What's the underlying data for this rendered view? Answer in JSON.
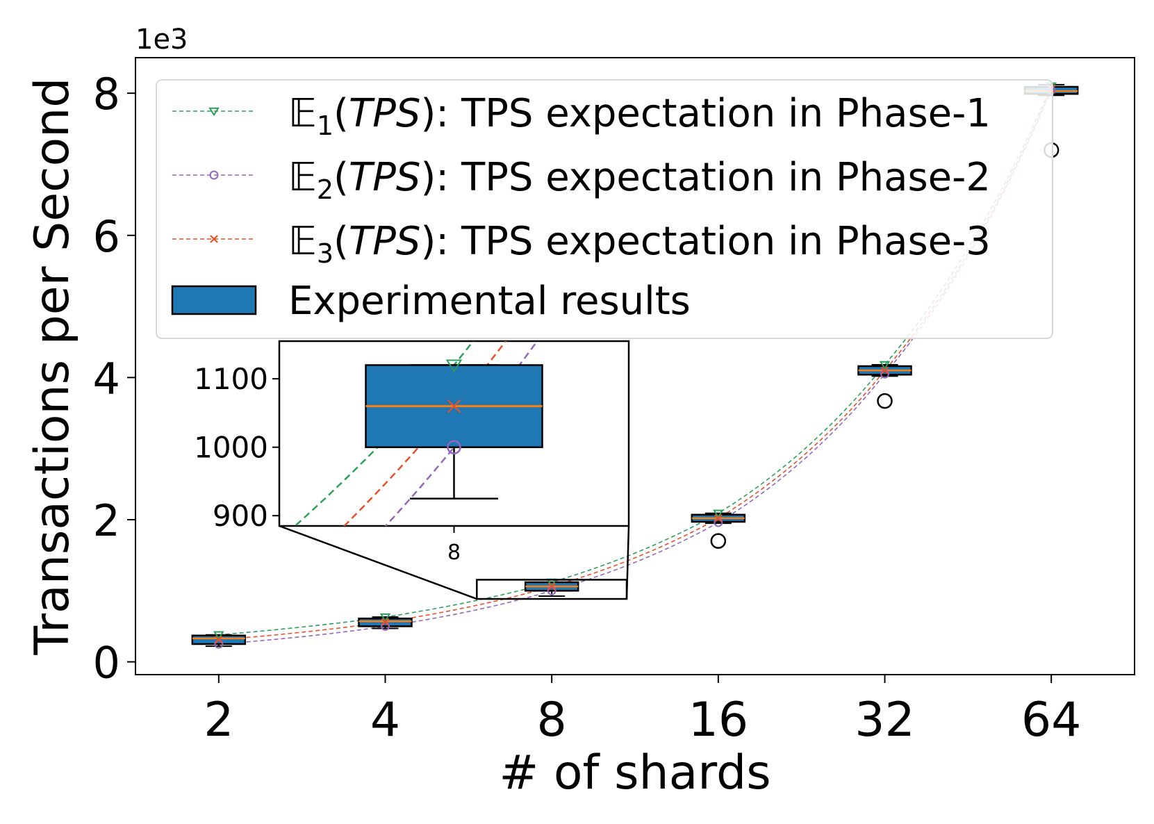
{
  "chart_data": [
    {
      "type": "box",
      "xlabel": "# of shards",
      "ylabel": "Transactions per Second",
      "scale_note": "1e3",
      "x_scale": "log2",
      "categories": [
        "2",
        "4",
        "8",
        "16",
        "32",
        "64"
      ],
      "x": [
        2,
        4,
        8,
        16,
        32,
        64
      ],
      "ylim": [
        -0.18,
        8.5
      ],
      "yticks": [
        0,
        2,
        4,
        6,
        8
      ],
      "y_tick_labels": [
        "0",
        "2",
        "4",
        "6",
        "8"
      ],
      "grid": false,
      "legend_placement": "upper-left",
      "boxes": [
        {
          "x": 2,
          "whisker_low": 0.22,
          "q1": 0.25,
          "median": 0.33,
          "q3": 0.37,
          "whisker_high": 0.38,
          "outliers": []
        },
        {
          "x": 4,
          "whisker_low": 0.47,
          "q1": 0.5,
          "median": 0.57,
          "q3": 0.61,
          "whisker_high": 0.63,
          "outliers": []
        },
        {
          "x": 8,
          "whisker_low": 0.925,
          "q1": 1.0,
          "median": 1.06,
          "q3": 1.12,
          "whisker_high": 1.12,
          "outliers": []
        },
        {
          "x": 16,
          "whisker_low": 1.95,
          "q1": 1.97,
          "median": 2.02,
          "q3": 2.07,
          "whisker_high": 2.09,
          "outliers": [
            1.7
          ]
        },
        {
          "x": 32,
          "whisker_low": 4.02,
          "q1": 4.04,
          "median": 4.1,
          "q3": 4.16,
          "whisker_high": 4.18,
          "outliers": [
            3.67
          ]
        },
        {
          "x": 64,
          "whisker_low": 7.97,
          "q1": 7.99,
          "median": 8.03,
          "q3": 8.09,
          "whisker_high": 8.12,
          "outliers": [
            7.2
          ]
        }
      ],
      "series": [
        {
          "name": "E1(TPS): TPS expectation in Phase-1",
          "values": [
            0.38,
            0.63,
            1.12,
            2.09,
            4.18,
            8.1
          ]
        },
        {
          "name": "E2(TPS): TPS expectation in Phase-2",
          "values": [
            0.25,
            0.5,
            1.0,
            1.96,
            4.05,
            8.04
          ]
        },
        {
          "name": "E3(TPS): TPS expectation in Phase-3",
          "values": [
            0.31,
            0.56,
            1.06,
            2.02,
            4.1,
            8.06
          ]
        }
      ],
      "colors": {
        "e1": "#2ca05a",
        "e2": "#9467bd",
        "e3": "#e8502b",
        "box_fill": "#1f77b4",
        "median": "#ff7f0e"
      },
      "legend": [
        {
          "math": "𝔼",
          "sub": "1",
          "paren_open": "(",
          "italic": "TPS",
          "paren_close": ")",
          "text": ": TPS expectation in Phase-1"
        },
        {
          "math": "𝔼",
          "sub": "2",
          "paren_open": "(",
          "italic": "TPS",
          "paren_close": ")",
          "text": ": TPS expectation in Phase-2"
        },
        {
          "math": "𝔼",
          "sub": "3",
          "paren_open": "(",
          "italic": "TPS",
          "paren_close": ")",
          "text": ": TPS expectation in Phase-3"
        },
        {
          "text": "Experimental results"
        }
      ]
    },
    {
      "type": "box",
      "role": "inset-zoom",
      "categories": [
        "8"
      ],
      "ylim": [
        885,
        1155
      ],
      "yticks": [
        900,
        1000,
        1100
      ],
      "y_tick_labels": [
        "900",
        "1000",
        "1100"
      ],
      "boxes": [
        {
          "x": 8,
          "whisker_low": 925,
          "q1": 1000,
          "median": 1060,
          "q3": 1120,
          "whisker_high": 1120,
          "outliers": []
        }
      ],
      "markers": {
        "e1": 1120,
        "e2": 1000,
        "e3": 1060
      }
    }
  ]
}
